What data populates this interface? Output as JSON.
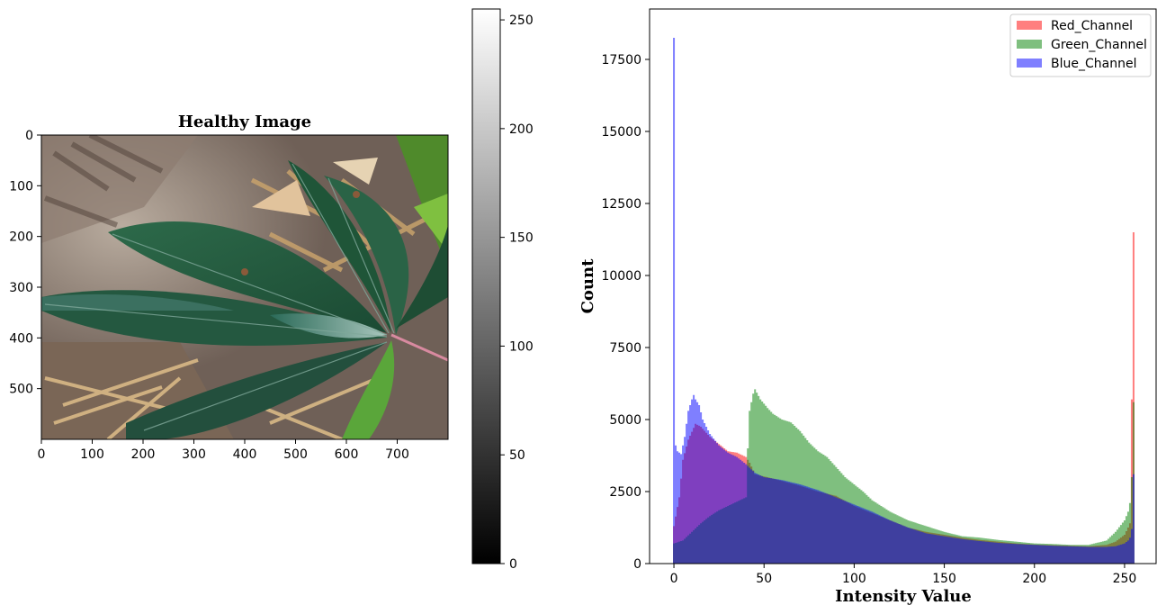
{
  "chart_data": [
    {
      "type": "image",
      "title": "Healthy Image",
      "subject": "green cassava-like leaves on dry soil and straw",
      "xlim": [
        0,
        800
      ],
      "ylim": [
        600,
        0
      ],
      "x_ticks": [
        0,
        100,
        200,
        300,
        400,
        500,
        600,
        700
      ],
      "y_ticks": [
        0,
        100,
        200,
        300,
        400,
        500
      ],
      "colorbar": {
        "cmap": "gray",
        "range": [
          0,
          255
        ],
        "ticks": [
          0,
          50,
          100,
          150,
          200,
          250
        ]
      }
    },
    {
      "type": "bar",
      "subtype": "histogram",
      "xlabel": "Intensity Value",
      "ylabel": "Count",
      "xlim": [
        -13,
        268
      ],
      "ylim": [
        0,
        19250
      ],
      "x_ticks": [
        0,
        50,
        100,
        150,
        200,
        250
      ],
      "y_ticks": [
        0,
        2500,
        5000,
        7500,
        10000,
        12500,
        15000,
        17500
      ],
      "legend_position": "top-right",
      "series": [
        {
          "name": "Red_Channel",
          "color": "#ff0000",
          "alpha": 0.5,
          "points": [
            [
              0,
              1300
            ],
            [
              3,
              2300
            ],
            [
              5,
              3600
            ],
            [
              8,
              4300
            ],
            [
              12,
              4850
            ],
            [
              15,
              4750
            ],
            [
              20,
              4400
            ],
            [
              25,
              4150
            ],
            [
              30,
              3900
            ],
            [
              35,
              3850
            ],
            [
              40,
              3700
            ],
            [
              42,
              3500
            ],
            [
              45,
              3100
            ],
            [
              55,
              2950
            ],
            [
              70,
              2700
            ],
            [
              80,
              2500
            ],
            [
              90,
              2350
            ],
            [
              100,
              2000
            ],
            [
              110,
              1750
            ],
            [
              120,
              1500
            ],
            [
              130,
              1250
            ],
            [
              140,
              1100
            ],
            [
              150,
              1000
            ],
            [
              160,
              900
            ],
            [
              170,
              820
            ],
            [
              180,
              760
            ],
            [
              190,
              700
            ],
            [
              200,
              660
            ],
            [
              210,
              640
            ],
            [
              220,
              620
            ],
            [
              230,
              600
            ],
            [
              240,
              650
            ],
            [
              245,
              760
            ],
            [
              250,
              1000
            ],
            [
              252,
              1250
            ],
            [
              253,
              1400
            ],
            [
              254,
              5700
            ],
            [
              255,
              11500
            ]
          ]
        },
        {
          "name": "Green_Channel",
          "color": "#008000",
          "alpha": 0.5,
          "points": [
            [
              0,
              700
            ],
            [
              5,
              800
            ],
            [
              10,
              1100
            ],
            [
              15,
              1400
            ],
            [
              20,
              1650
            ],
            [
              25,
              1850
            ],
            [
              30,
              2000
            ],
            [
              35,
              2150
            ],
            [
              40,
              2300
            ],
            [
              41,
              4000
            ],
            [
              42,
              5300
            ],
            [
              44,
              5900
            ],
            [
              45,
              6050
            ],
            [
              48,
              5700
            ],
            [
              52,
              5400
            ],
            [
              55,
              5200
            ],
            [
              60,
              5000
            ],
            [
              65,
              4900
            ],
            [
              70,
              4600
            ],
            [
              75,
              4200
            ],
            [
              80,
              3900
            ],
            [
              85,
              3700
            ],
            [
              90,
              3350
            ],
            [
              95,
              3000
            ],
            [
              100,
              2750
            ],
            [
              105,
              2500
            ],
            [
              110,
              2200
            ],
            [
              120,
              1800
            ],
            [
              130,
              1500
            ],
            [
              140,
              1300
            ],
            [
              150,
              1100
            ],
            [
              160,
              950
            ],
            [
              170,
              900
            ],
            [
              180,
              820
            ],
            [
              190,
              760
            ],
            [
              200,
              700
            ],
            [
              210,
              680
            ],
            [
              220,
              650
            ],
            [
              230,
              650
            ],
            [
              240,
              800
            ],
            [
              245,
              1100
            ],
            [
              250,
              1500
            ],
            [
              252,
              1800
            ],
            [
              253,
              2100
            ],
            [
              254,
              3000
            ],
            [
              255,
              5600
            ]
          ]
        },
        {
          "name": "Blue_Channel",
          "color": "#0000ff",
          "alpha": 0.5,
          "points": [
            [
              0,
              18250
            ],
            [
              1,
              4100
            ],
            [
              2,
              3900
            ],
            [
              4,
              3800
            ],
            [
              6,
              4400
            ],
            [
              8,
              5300
            ],
            [
              10,
              5700
            ],
            [
              11,
              5850
            ],
            [
              12,
              5700
            ],
            [
              14,
              5500
            ],
            [
              16,
              5000
            ],
            [
              20,
              4500
            ],
            [
              25,
              4100
            ],
            [
              30,
              3850
            ],
            [
              35,
              3700
            ],
            [
              40,
              3450
            ],
            [
              45,
              3150
            ],
            [
              50,
              3000
            ],
            [
              60,
              2900
            ],
            [
              70,
              2750
            ],
            [
              80,
              2550
            ],
            [
              90,
              2300
            ],
            [
              100,
              2050
            ],
            [
              110,
              1800
            ],
            [
              120,
              1500
            ],
            [
              130,
              1250
            ],
            [
              140,
              1050
            ],
            [
              150,
              950
            ],
            [
              160,
              850
            ],
            [
              170,
              780
            ],
            [
              180,
              720
            ],
            [
              190,
              680
            ],
            [
              200,
              650
            ],
            [
              210,
              620
            ],
            [
              220,
              600
            ],
            [
              230,
              580
            ],
            [
              240,
              580
            ],
            [
              245,
              600
            ],
            [
              250,
              700
            ],
            [
              252,
              800
            ],
            [
              253,
              900
            ],
            [
              254,
              1200
            ],
            [
              255,
              3100
            ]
          ]
        }
      ]
    }
  ]
}
